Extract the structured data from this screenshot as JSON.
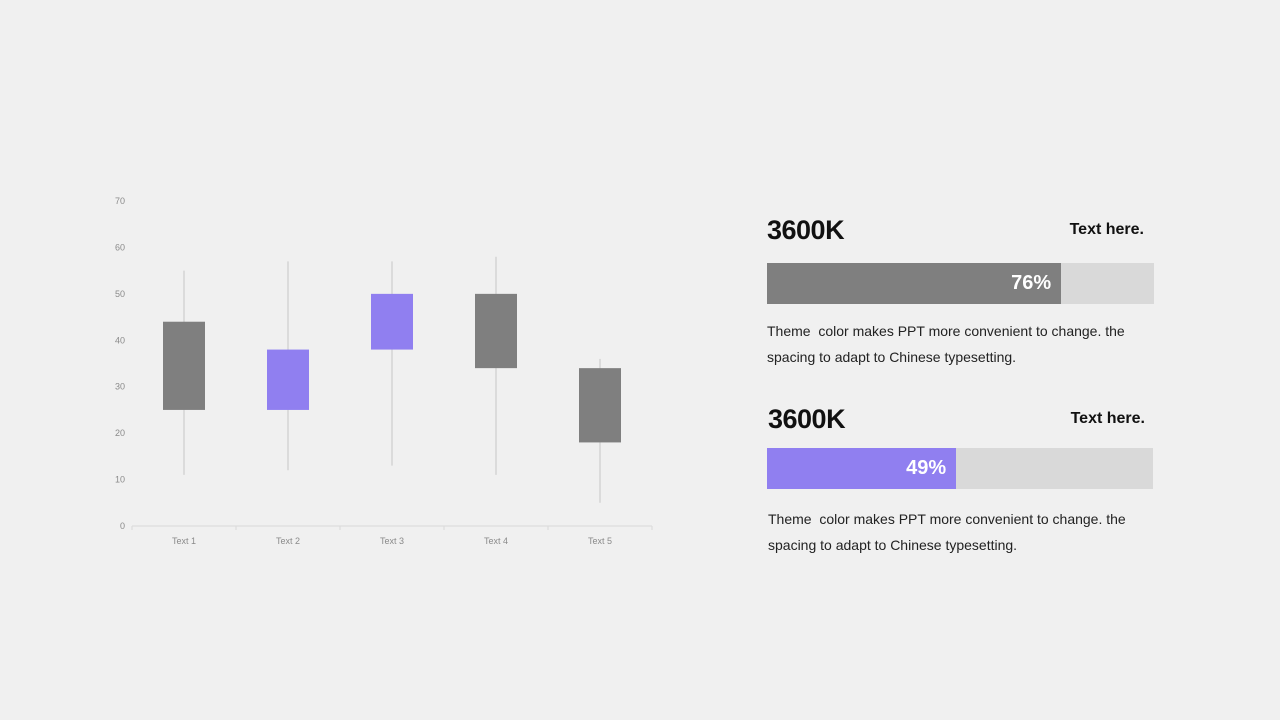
{
  "chart_data": {
    "type": "candlestick",
    "categories": [
      "Text 1",
      "Text 2",
      "Text 3",
      "Text 4",
      "Text 5"
    ],
    "series": [
      {
        "values": [
          {
            "open": 44,
            "high": 55,
            "low": 11,
            "close": 25
          },
          {
            "open": 25,
            "high": 57,
            "low": 12,
            "close": 38
          },
          {
            "open": 38,
            "high": 57,
            "low": 13,
            "close": 50
          },
          {
            "open": 50,
            "high": 58,
            "low": 11,
            "close": 34
          },
          {
            "open": 34,
            "high": 36,
            "low": 5,
            "close": 18
          }
        ]
      }
    ],
    "ylim": [
      0,
      70
    ],
    "yticks": [
      0,
      10,
      20,
      30,
      40,
      50,
      60,
      70
    ],
    "up_color": "#907ff0",
    "down_color": "#7f7f7f",
    "wick_color": "#d4d4d4",
    "grid": false
  },
  "stats": [
    {
      "value": "3600K",
      "label": "Text here.",
      "percent": 76,
      "percent_label": "76%",
      "color": "#7f7f7f",
      "description": "Theme  color makes PPT more convenient to change. the spacing to adapt to Chinese typesetting."
    },
    {
      "value": "3600K",
      "label": "Text here.",
      "percent": 49,
      "percent_label": "49%",
      "color": "#907ff0",
      "description": "Theme  color makes PPT more convenient to change. the spacing to adapt to Chinese typesetting."
    }
  ]
}
